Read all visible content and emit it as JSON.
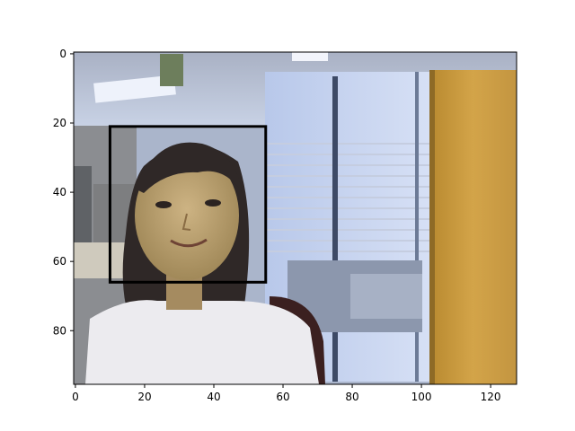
{
  "image": {
    "description_icon": "photo-of-person-in-office",
    "width_units": 128,
    "height_units": 96
  },
  "axes": {
    "x_ticks": [
      0,
      20,
      40,
      60,
      80,
      100,
      120
    ],
    "y_ticks": [
      0,
      20,
      40,
      60,
      80
    ],
    "xlim": [
      -0.5,
      127.5
    ],
    "ylim": [
      95.5,
      -0.5
    ]
  },
  "bounding_box": {
    "x_min": 10,
    "y_min": 21,
    "x_max": 55,
    "y_max": 66,
    "color": "#000000"
  }
}
